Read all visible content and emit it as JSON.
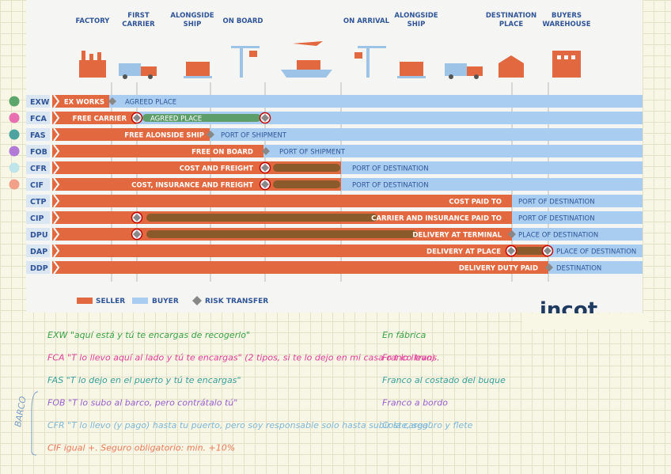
{
  "header": {
    "stages": [
      {
        "lines": [
          "FACTORY"
        ]
      },
      {
        "lines": [
          "FIRST",
          "CARRIER"
        ]
      },
      {
        "lines": [
          "ALONGSIDE",
          "SHIP"
        ]
      },
      {
        "lines": [
          "ON BOARD"
        ]
      },
      {
        "lines": [
          "ON ARRIVAL"
        ]
      },
      {
        "lines": [
          "ALONGSIDE",
          "SHIP"
        ]
      },
      {
        "lines": [
          "DESTINATION",
          "PLACE"
        ]
      },
      {
        "lines": [
          "BUYERS",
          "WAREHOUSE"
        ]
      }
    ]
  },
  "rows": [
    {
      "code": "EXW",
      "seller": "EX WORKS",
      "buyer": "AGREED PLACE"
    },
    {
      "code": "FCA",
      "seller": "FREE CARRIER",
      "buyer": "AGREED PLACE"
    },
    {
      "code": "FAS",
      "seller": "FREE ALONSIDE SHIP",
      "buyer": "PORT OF SHIPMENT"
    },
    {
      "code": "FOB",
      "seller": "FREE ON BOARD",
      "buyer": "PORT OF SHIPMENT"
    },
    {
      "code": "CFR",
      "seller": "COST AND FREIGHT",
      "buyer": "PORT OF DESTINATION"
    },
    {
      "code": "CIF",
      "seller": "COST, INSURANCE AND FREIGHT",
      "buyer": "PORT OF DESTINATION"
    },
    {
      "code": "CTP",
      "seller": "COST PAID TO",
      "buyer": "PORT OF DESTINATION"
    },
    {
      "code": "CIP",
      "seller": "CARRIER AND INSURANCE PAID TO",
      "buyer": "PORT OF DESTINATION"
    },
    {
      "code": "DPU",
      "seller": "DELIVERY AT TERMINAL",
      "buyer": "PLACE OF DESTINATION"
    },
    {
      "code": "DAP",
      "seller": "DELIVERY AT PLACE",
      "buyer": "PLACE OF DESTINATION"
    },
    {
      "code": "DDP",
      "seller": "DELIVERY DUTY PAID",
      "buyer": "DESTINATION"
    }
  ],
  "legend": {
    "seller": "SELLER",
    "buyer": "BUYER",
    "risk": "RISK TRANSFER"
  },
  "logo": "incot",
  "side_label": "BARCO",
  "notes": [
    {
      "text": "EXW \"aquí está y tú te encargas de recogerlo\"",
      "translation": "En fábrica"
    },
    {
      "text": "FCA \"T lo llevo aquí al lado y tú te encargas\"  (2 tipos, si te lo dejo en mi casa o t lo llevo)",
      "translation": "Franco trans."
    },
    {
      "text": "FAS \"T lo dejo en el puerto y tú te encargas\"",
      "translation": "Franco al costado del buque"
    },
    {
      "text": "FOB \"T lo subo al barco, pero contrátalo tú\"",
      "translation": "Franco a bordo"
    },
    {
      "text": "CFR \"T lo llevo (y pago) hasta tu puerto, pero soy responsable solo hasta subir la carga\"",
      "translation": "Coste, seguro y flete"
    },
    {
      "text": "CIF  igual +. Seguro obligatorio: min. +10%"
    }
  ]
}
